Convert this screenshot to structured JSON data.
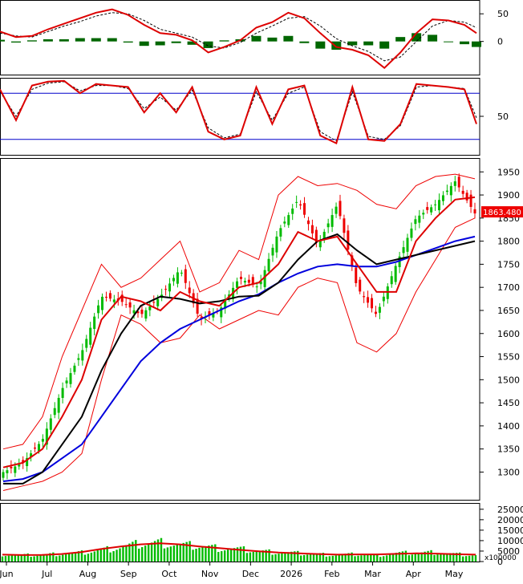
{
  "colors": {
    "up": "#00bb00",
    "down": "#ee0000",
    "ma_short": "#dd0000",
    "ma_mid": "#000000",
    "ma_long": "#0000dd",
    "bollinger": "#ee0000",
    "stoch_lines": "#0000cc",
    "price_badge": "#ee0000",
    "grid": "#000000"
  },
  "chart_data": [
    {
      "type": "line",
      "panel": "macd",
      "yticks": [
        50,
        0
      ],
      "ylim": [
        -60,
        75
      ],
      "x": [
        0,
        20,
        40,
        60,
        80,
        100,
        120,
        140,
        160,
        180,
        200,
        220,
        240,
        260,
        280,
        300,
        320,
        340,
        360,
        380,
        400,
        420,
        440,
        460,
        480,
        500,
        520,
        540,
        560,
        580,
        595
      ],
      "series": [
        {
          "values": [
            18,
            8,
            10,
            22,
            32,
            42,
            52,
            58,
            48,
            30,
            15,
            12,
            2,
            -20,
            -10,
            2,
            25,
            35,
            52,
            42,
            15,
            -10,
            -15,
            -25,
            -48,
            -20,
            15,
            40,
            38,
            30,
            15
          ]
        },
        {
          "values": [
            15,
            10,
            8,
            18,
            28,
            36,
            46,
            52,
            50,
            38,
            22,
            15,
            8,
            -8,
            -12,
            -2,
            15,
            28,
            42,
            45,
            28,
            5,
            -8,
            -18,
            -35,
            -28,
            0,
            28,
            38,
            35,
            25
          ]
        },
        {
          "values": [
            3,
            -2,
            2,
            4,
            4,
            6,
            6,
            6,
            -2,
            -8,
            -7,
            -3,
            -6,
            -12,
            2,
            4,
            10,
            7,
            10,
            -3,
            -13,
            -15,
            -7,
            -7,
            -13,
            8,
            15,
            12,
            0,
            -5,
            -10
          ]
        }
      ]
    },
    {
      "type": "line",
      "panel": "stochastic",
      "yticks": [
        50
      ],
      "levels": [
        80,
        20
      ],
      "ylim": [
        0,
        100
      ],
      "x": [
        0,
        20,
        40,
        60,
        80,
        100,
        120,
        140,
        160,
        180,
        200,
        220,
        240,
        260,
        280,
        300,
        320,
        340,
        360,
        380,
        400,
        420,
        440,
        460,
        480,
        500,
        520,
        540,
        560,
        580,
        595
      ],
      "series": [
        {
          "values": [
            85,
            45,
            90,
            95,
            96,
            80,
            92,
            90,
            88,
            55,
            80,
            55,
            88,
            30,
            20,
            25,
            88,
            40,
            85,
            90,
            25,
            15,
            88,
            20,
            18,
            40,
            92,
            90,
            88,
            85,
            40
          ]
        },
        {
          "values": [
            82,
            50,
            85,
            93,
            95,
            83,
            90,
            90,
            86,
            60,
            75,
            58,
            84,
            35,
            22,
            27,
            82,
            45,
            80,
            88,
            30,
            18,
            82,
            24,
            20,
            38,
            88,
            90,
            88,
            86,
            48
          ]
        }
      ]
    },
    {
      "type": "candlestick",
      "panel": "price",
      "yticks": [
        1950,
        1900,
        1850,
        1800,
        1750,
        1700,
        1650,
        1600,
        1550,
        1500,
        1450,
        1400,
        1350,
        1300
      ],
      "ylim": [
        1240,
        1980
      ],
      "last_price": "1863.480",
      "xticks": [
        "Jun",
        "Jul",
        "Aug",
        "Sep",
        "Oct",
        "Nov",
        "Dec",
        "2026",
        "Feb",
        "Mar",
        "Apr",
        "May"
      ],
      "close": [
        1300,
        1320,
        1370,
        1480,
        1560,
        1680,
        1670,
        1640,
        1680,
        1740,
        1630,
        1650,
        1720,
        1700,
        1820,
        1890,
        1790,
        1880,
        1700,
        1640,
        1750,
        1850,
        1880,
        1930,
        1860
      ],
      "ma_short": [
        1310,
        1320,
        1350,
        1420,
        1500,
        1630,
        1680,
        1670,
        1650,
        1690,
        1670,
        1660,
        1700,
        1710,
        1750,
        1820,
        1800,
        1810,
        1750,
        1690,
        1690,
        1800,
        1850,
        1890,
        1895
      ],
      "ma_mid": [
        1275,
        1275,
        1300,
        1360,
        1420,
        1520,
        1600,
        1660,
        1680,
        1675,
        1665,
        1670,
        1680,
        1682,
        1710,
        1760,
        1800,
        1815,
        1780,
        1750,
        1760,
        1770,
        1780,
        1790,
        1800
      ],
      "ma_long": [
        1280,
        1285,
        1300,
        1330,
        1360,
        1420,
        1480,
        1540,
        1580,
        1610,
        1630,
        1650,
        1670,
        1685,
        1710,
        1730,
        1745,
        1750,
        1745,
        1745,
        1755,
        1770,
        1785,
        1800,
        1810
      ],
      "boll_upper": [
        1350,
        1360,
        1420,
        1550,
        1650,
        1750,
        1700,
        1720,
        1760,
        1800,
        1690,
        1710,
        1780,
        1760,
        1900,
        1940,
        1920,
        1925,
        1910,
        1880,
        1870,
        1920,
        1940,
        1945,
        1935
      ],
      "boll_lower": [
        1260,
        1270,
        1280,
        1300,
        1340,
        1500,
        1640,
        1620,
        1580,
        1590,
        1640,
        1610,
        1630,
        1650,
        1640,
        1700,
        1720,
        1710,
        1580,
        1560,
        1600,
        1690,
        1760,
        1830,
        1850
      ]
    },
    {
      "type": "bar",
      "panel": "volume",
      "yticks": [
        25000,
        20000,
        15000,
        10000,
        5000,
        0
      ],
      "unit_label": "x100000",
      "ylim": [
        0,
        28000
      ],
      "values": [
        3500,
        3000,
        3200,
        3800,
        4200,
        5500,
        7000,
        8500,
        9200,
        8000,
        7500,
        6500,
        6000,
        5000,
        4500,
        4000,
        3500,
        3200,
        3500,
        3000,
        4000,
        4200,
        4500,
        3500,
        3000
      ],
      "ma": [
        3300,
        3100,
        3200,
        3600,
        4500,
        6000,
        7200,
        8200,
        8700,
        8200,
        7200,
        6400,
        5600,
        4900,
        4300,
        3900,
        3600,
        3300,
        3400,
        3400,
        3700,
        3900,
        3800,
        3500,
        3300
      ]
    }
  ]
}
